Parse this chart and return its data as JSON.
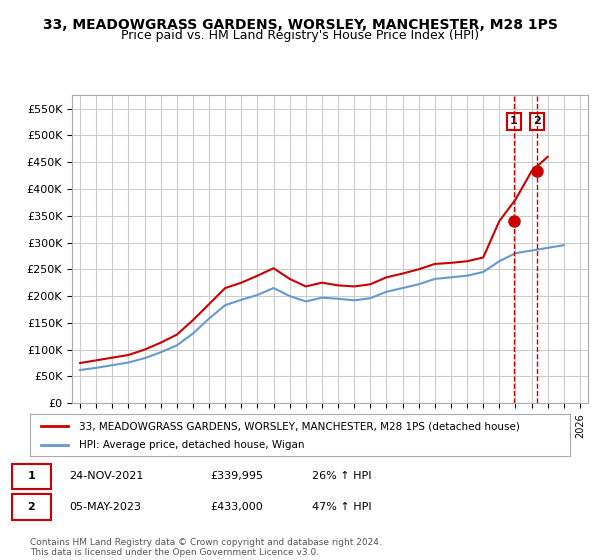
{
  "title": "33, MEADOWGRASS GARDENS, WORSLEY, MANCHESTER, M28 1PS",
  "subtitle": "Price paid vs. HM Land Registry's House Price Index (HPI)",
  "ylabel_ticks": [
    "£0",
    "£50K",
    "£100K",
    "£150K",
    "£200K",
    "£250K",
    "£300K",
    "£350K",
    "£400K",
    "£450K",
    "£500K",
    "£550K"
  ],
  "ytick_vals": [
    0,
    50000,
    100000,
    150000,
    200000,
    250000,
    300000,
    350000,
    400000,
    450000,
    500000,
    550000
  ],
  "ylim": [
    0,
    575000
  ],
  "xlim_start": 1994.5,
  "xlim_end": 2026.5,
  "sale1_x": 2021.9,
  "sale1_y": 339995,
  "sale1_label": "1",
  "sale2_x": 2023.35,
  "sale2_y": 433000,
  "sale2_label": "2",
  "vline1_x": 2021.9,
  "vline2_x": 2023.35,
  "legend_line1_label": "33, MEADOWGRASS GARDENS, WORSLEY, MANCHESTER, M28 1PS (detached house)",
  "legend_line1_color": "#cc0000",
  "legend_line2_label": "HPI: Average price, detached house, Wigan",
  "legend_line2_color": "#6699cc",
  "table_row1": [
    "1",
    "24-NOV-2021",
    "£339,995",
    "26% ↑ HPI"
  ],
  "table_row2": [
    "2",
    "05-MAY-2023",
    "£433,000",
    "47% ↑ HPI"
  ],
  "footnote": "Contains HM Land Registry data © Crown copyright and database right 2024.\nThis data is licensed under the Open Government Licence v3.0.",
  "background_color": "#ffffff",
  "grid_color": "#cccccc",
  "hpi_color": "#6699cc",
  "sale_color": "#cc0000",
  "years_hpi": [
    1995,
    1996,
    1997,
    1998,
    1999,
    2000,
    2001,
    2002,
    2003,
    2004,
    2005,
    2006,
    2007,
    2008,
    2009,
    2010,
    2011,
    2012,
    2013,
    2014,
    2015,
    2016,
    2017,
    2018,
    2019,
    2020,
    2021,
    2022,
    2023,
    2024,
    2025
  ],
  "hpi_values": [
    62000,
    66000,
    71000,
    76000,
    84000,
    95000,
    108000,
    130000,
    158000,
    183000,
    193000,
    202000,
    215000,
    200000,
    190000,
    197000,
    195000,
    192000,
    196000,
    208000,
    215000,
    222000,
    232000,
    235000,
    238000,
    245000,
    265000,
    280000,
    285000,
    290000,
    295000
  ],
  "years_prop": [
    1995,
    1996,
    1997,
    1998,
    1999,
    2000,
    2001,
    2002,
    2003,
    2004,
    2005,
    2006,
    2007,
    2008,
    2009,
    2010,
    2011,
    2012,
    2013,
    2014,
    2015,
    2016,
    2017,
    2018,
    2019,
    2020,
    2021,
    2022,
    2023,
    2024
  ],
  "prop_values": [
    75000,
    80000,
    85000,
    90000,
    100000,
    113000,
    128000,
    155000,
    185000,
    215000,
    225000,
    238000,
    252000,
    232000,
    218000,
    225000,
    220000,
    218000,
    222000,
    235000,
    242000,
    250000,
    260000,
    262000,
    265000,
    272000,
    340000,
    380000,
    433000,
    460000
  ]
}
